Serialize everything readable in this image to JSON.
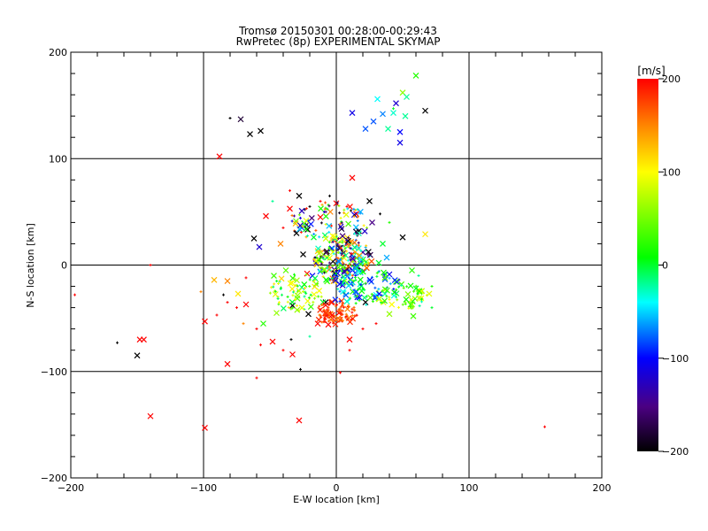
{
  "chart_data": {
    "type": "scatter",
    "title": "Tromsø 20150301 00:28:00-00:29:43",
    "subtitle": "RwPretec (8p) EXPERIMENTAL SKYMAP",
    "xlabel": "E-W location [km]",
    "ylabel": "N-S location [km]",
    "xlim": [
      -200,
      200
    ],
    "ylim": [
      -200,
      200
    ],
    "xticks": [
      -200,
      -100,
      0,
      100,
      200
    ],
    "yticks": [
      -200,
      -100,
      0,
      100,
      200
    ],
    "grid": true,
    "colorbar": {
      "label": "[m/s]",
      "min": -200,
      "max": 200,
      "ticks": [
        -200,
        -100,
        0,
        100,
        200
      ],
      "colormap": "black-purple-blue-cyan-green-yellow-red"
    },
    "marker_legend": {
      "x": "large x",
      "dot": "small +"
    },
    "points": [
      [
        -72,
        137,
        -180,
        "x"
      ],
      [
        -65,
        123,
        -200,
        "x"
      ],
      [
        -57,
        126,
        -200,
        "x"
      ],
      [
        -80,
        138,
        -200,
        "dot"
      ],
      [
        -88,
        102,
        200,
        "x"
      ],
      [
        12,
        143,
        -110,
        "x"
      ],
      [
        22,
        128,
        -80,
        "x"
      ],
      [
        28,
        135,
        -80,
        "x"
      ],
      [
        31,
        156,
        -40,
        "x"
      ],
      [
        35,
        142,
        -70,
        "x"
      ],
      [
        39,
        128,
        -20,
        "x"
      ],
      [
        45,
        152,
        -120,
        "x"
      ],
      [
        43,
        143,
        -30,
        "x"
      ],
      [
        48,
        115,
        -110,
        "x"
      ],
      [
        48,
        125,
        -100,
        "x"
      ],
      [
        50,
        162,
        60,
        "x"
      ],
      [
        53,
        158,
        -20,
        "x"
      ],
      [
        52,
        140,
        -20,
        "x"
      ],
      [
        60,
        178,
        20,
        "x"
      ],
      [
        67,
        145,
        -200,
        "x"
      ],
      [
        43,
        147,
        0,
        "dot"
      ],
      [
        -150,
        -85,
        -200,
        "x"
      ],
      [
        -148,
        -70,
        200,
        "x"
      ],
      [
        -145,
        -70,
        200,
        "x"
      ],
      [
        -165,
        -73,
        -200,
        "dot"
      ],
      [
        -140,
        -142,
        200,
        "x"
      ],
      [
        -99,
        -153,
        200,
        "x"
      ],
      [
        -99,
        -53,
        200,
        "x"
      ],
      [
        -82,
        -93,
        200,
        "x"
      ],
      [
        -33,
        -84,
        200,
        "x"
      ],
      [
        -28,
        -146,
        200,
        "x"
      ],
      [
        -27,
        -98,
        -200,
        "dot"
      ],
      [
        -60,
        -106,
        200,
        "dot"
      ],
      [
        -197,
        -28,
        200,
        "dot"
      ],
      [
        157,
        -152,
        200,
        "dot"
      ],
      [
        -140,
        0,
        200,
        "dot"
      ],
      [
        3,
        -101,
        200,
        "dot"
      ],
      [
        -62,
        25,
        -200,
        "x"
      ],
      [
        -58,
        17,
        -120,
        "x"
      ],
      [
        -53,
        46,
        200,
        "x"
      ],
      [
        50,
        26,
        -200,
        "x"
      ],
      [
        67,
        29,
        110,
        "x"
      ],
      [
        -92,
        -14,
        130,
        "x"
      ],
      [
        -82,
        -15,
        150,
        "x"
      ],
      [
        -74,
        -27,
        110,
        "x"
      ],
      [
        -68,
        -37,
        200,
        "x"
      ],
      [
        -55,
        -55,
        20,
        "x"
      ],
      [
        -48,
        -72,
        200,
        "x"
      ],
      [
        -45,
        -45,
        60,
        "x"
      ],
      [
        40,
        -46,
        60,
        "x"
      ],
      [
        58,
        -48,
        30,
        "x"
      ],
      [
        57,
        -5,
        20,
        "x"
      ],
      [
        60,
        -22,
        0,
        "x"
      ],
      [
        70,
        -27,
        90,
        "x"
      ],
      [
        -42,
        20,
        150,
        "x"
      ],
      [
        -35,
        53,
        200,
        "x"
      ],
      [
        -30,
        30,
        -200,
        "x"
      ],
      [
        -25,
        10,
        -200,
        "x"
      ],
      [
        -18,
        -10,
        -100,
        "x"
      ],
      [
        -12,
        45,
        200,
        "x"
      ],
      [
        -8,
        -35,
        -200,
        "x"
      ],
      [
        -4,
        15,
        20,
        "x"
      ],
      [
        0,
        58,
        200,
        "x"
      ],
      [
        4,
        34,
        -180,
        "x"
      ],
      [
        7,
        -5,
        -60,
        "x"
      ],
      [
        9,
        18,
        -40,
        "x"
      ],
      [
        12,
        82,
        200,
        "x"
      ],
      [
        15,
        48,
        200,
        "x"
      ],
      [
        18,
        -18,
        -30,
        "x"
      ],
      [
        20,
        12,
        -140,
        "x"
      ],
      [
        25,
        60,
        -200,
        "x"
      ],
      [
        27,
        40,
        -150,
        "x"
      ],
      [
        30,
        -28,
        -40,
        "x"
      ],
      [
        32,
        2,
        0,
        "x"
      ],
      [
        -28,
        65,
        -200,
        "x"
      ],
      [
        -3,
        -50,
        200,
        "x"
      ],
      [
        2,
        -45,
        200,
        "x"
      ],
      [
        -6,
        -56,
        200,
        "x"
      ],
      [
        10,
        -70,
        200,
        "x"
      ],
      [
        -14,
        -55,
        200,
        "x"
      ],
      [
        -38,
        -5,
        40,
        "x"
      ],
      [
        -33,
        -38,
        -200,
        "x"
      ],
      [
        -21,
        -46,
        -200,
        "x"
      ],
      [
        -17,
        26,
        0,
        "x"
      ],
      [
        22,
        -35,
        -200,
        "x"
      ],
      [
        35,
        20,
        0,
        "x"
      ],
      [
        17,
        32,
        -200,
        "x"
      ],
      [
        -2,
        -15,
        200,
        "x"
      ],
      [
        -10,
        -35,
        0,
        "x"
      ],
      [
        -7,
        7,
        0,
        "x"
      ],
      [
        5,
        -25,
        -40,
        "x"
      ],
      [
        13,
        5,
        200,
        "x"
      ],
      [
        -22,
        -8,
        200,
        "x"
      ],
      [
        -26,
        -21,
        -20,
        "x"
      ],
      [
        38,
        7,
        -60,
        "x"
      ],
      [
        -47,
        -10,
        30,
        "x"
      ],
      [
        -12,
        60,
        200,
        "dot"
      ],
      [
        -5,
        65,
        -200,
        "dot"
      ],
      [
        8,
        55,
        200,
        "dot"
      ],
      [
        16,
        45,
        150,
        "dot"
      ],
      [
        23,
        35,
        60,
        "dot"
      ],
      [
        -40,
        35,
        200,
        "dot"
      ],
      [
        -48,
        60,
        -20,
        "dot"
      ],
      [
        -35,
        70,
        200,
        "dot"
      ],
      [
        -20,
        55,
        -200,
        "dot"
      ],
      [
        33,
        48,
        -200,
        "dot"
      ],
      [
        40,
        40,
        20,
        "dot"
      ],
      [
        -68,
        -12,
        200,
        "dot"
      ],
      [
        -75,
        -40,
        200,
        "dot"
      ],
      [
        -82,
        -35,
        200,
        "dot"
      ],
      [
        -85,
        -28,
        -200,
        "dot"
      ],
      [
        -90,
        -47,
        200,
        "dot"
      ],
      [
        -60,
        -60,
        200,
        "dot"
      ],
      [
        -57,
        -75,
        200,
        "dot"
      ],
      [
        -40,
        -80,
        200,
        "dot"
      ],
      [
        -20,
        -67,
        -20,
        "dot"
      ],
      [
        10,
        -80,
        200,
        "dot"
      ],
      [
        20,
        -60,
        200,
        "dot"
      ],
      [
        30,
        -55,
        200,
        "dot"
      ],
      [
        45,
        -30,
        0,
        "dot"
      ],
      [
        52,
        -35,
        60,
        "dot"
      ],
      [
        65,
        -32,
        90,
        "dot"
      ],
      [
        72,
        -20,
        20,
        "dot"
      ],
      [
        62,
        -10,
        -20,
        "dot"
      ],
      [
        72,
        -40,
        0,
        "dot"
      ],
      [
        -44,
        -30,
        60,
        "dot"
      ],
      [
        -34,
        -70,
        -200,
        "dot"
      ],
      [
        -70,
        -55,
        150,
        "dot"
      ],
      [
        -102,
        -25,
        150,
        "dot"
      ]
    ]
  }
}
